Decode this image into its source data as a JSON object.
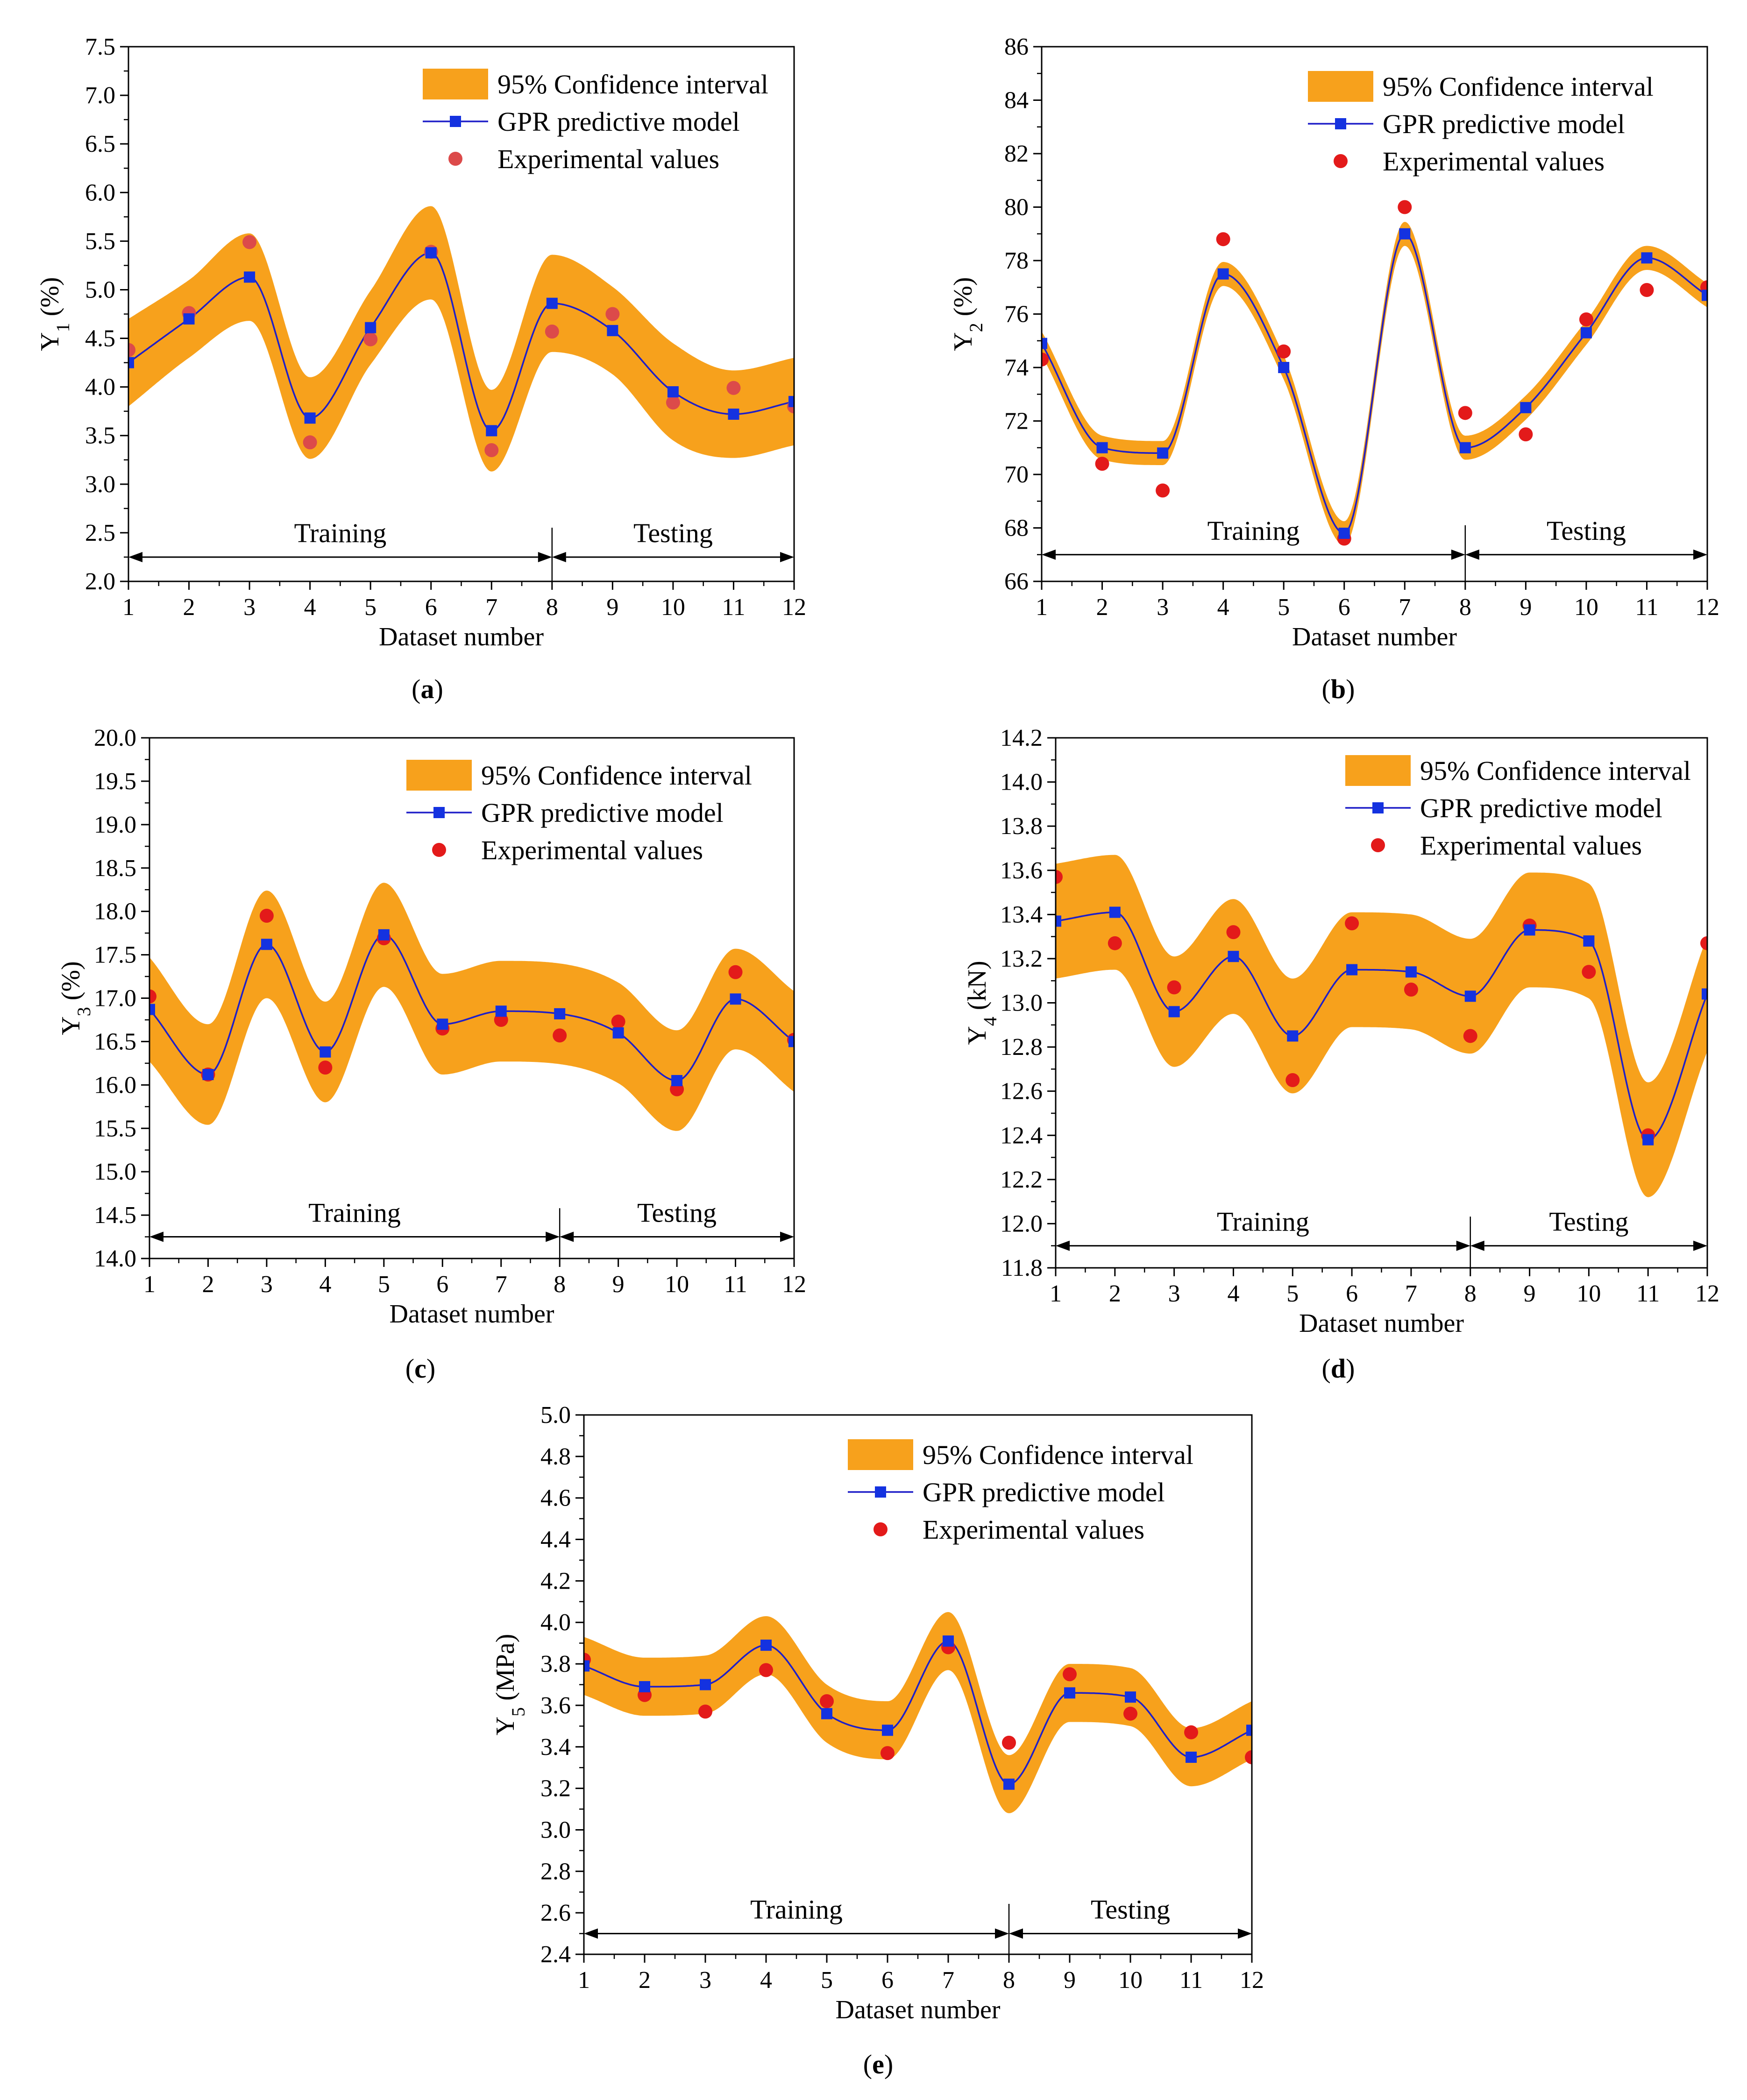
{
  "colors": {
    "band": "#f7a11c",
    "line": "#1f1fc8",
    "marker_square": "#1432e0",
    "marker_circle": "#e31a1a",
    "marker_circle_a": "#dc4a4a",
    "axis": "#000000"
  },
  "chart_data": [
    {
      "id": "a",
      "type": "line",
      "panel_label": "(a)",
      "panel_letter": "a",
      "ylabel": "Y1 (%)",
      "ylabel_main": "Y",
      "ylabel_sub": "1",
      "ylabel_unit": " (%)",
      "xlabel": "Dataset number",
      "xlim": [
        1,
        12
      ],
      "ylim": [
        2.0,
        7.5
      ],
      "ytick_step": 0.5,
      "ytick_decimals": 1,
      "x": [
        1,
        2,
        3,
        4,
        5,
        6,
        7,
        8,
        9,
        10,
        11,
        12
      ],
      "x_tick_labels": [
        "1",
        "2",
        "3",
        "4",
        "5",
        "6",
        "7",
        "8",
        "9",
        "10",
        "11",
        "12"
      ],
      "y_tick_labels": [
        "2.0",
        "2.5",
        "3.0",
        "3.5",
        "4.0",
        "4.5",
        "5.0",
        "5.5",
        "6.0",
        "6.5",
        "7.0",
        "7.5"
      ],
      "series": [
        {
          "name": "GPR predictive model",
          "values": [
            4.25,
            4.7,
            5.13,
            3.68,
            4.61,
            5.38,
            3.55,
            4.86,
            4.58,
            3.95,
            3.72,
            3.85
          ]
        },
        {
          "name": "Experimental values",
          "values": [
            4.38,
            4.76,
            5.49,
            3.43,
            4.49,
            5.39,
            3.35,
            4.57,
            4.75,
            3.84,
            3.99,
            3.8
          ]
        },
        {
          "name": "95% Confidence interval",
          "half_width": [
            0.45,
            0.4,
            0.45,
            0.42,
            0.38,
            0.48,
            0.42,
            0.5,
            0.45,
            0.5,
            0.45,
            0.45
          ]
        }
      ],
      "legend": [
        "95% Confidence interval",
        "GPR predictive model",
        "Experimental values"
      ],
      "split_x": 8,
      "arrow_y": 2.25,
      "region_labels": [
        "Training",
        "Testing"
      ]
    },
    {
      "id": "b",
      "type": "line",
      "panel_label": "(b)",
      "panel_letter": "b",
      "ylabel": "Y2 (%)",
      "ylabel_main": "Y",
      "ylabel_sub": "2",
      "ylabel_unit": " (%)",
      "xlabel": "Dataset number",
      "xlim": [
        1,
        12
      ],
      "ylim": [
        66,
        86
      ],
      "ytick_step": 2,
      "ytick_decimals": 0,
      "x": [
        1,
        2,
        3,
        4,
        5,
        6,
        7,
        8,
        9,
        10,
        11,
        12
      ],
      "x_tick_labels": [
        "1",
        "2",
        "3",
        "4",
        "5",
        "6",
        "7",
        "8",
        "9",
        "10",
        "11",
        "12"
      ],
      "y_tick_labels": [
        "66",
        "68",
        "70",
        "72",
        "74",
        "76",
        "78",
        "80",
        "82",
        "84",
        "86"
      ],
      "series": [
        {
          "name": "GPR predictive model",
          "values": [
            74.9,
            71.0,
            70.8,
            77.5,
            74.0,
            67.8,
            79.0,
            71.0,
            72.5,
            75.3,
            78.1,
            76.7
          ]
        },
        {
          "name": "Experimental values",
          "values": [
            74.3,
            70.4,
            69.4,
            78.8,
            74.6,
            67.6,
            80.0,
            72.3,
            71.5,
            75.8,
            76.9,
            77.0
          ]
        },
        {
          "name": "95% Confidence interval",
          "half_width": [
            0.45,
            0.45,
            0.45,
            0.45,
            0.45,
            0.45,
            0.45,
            0.45,
            0.45,
            0.45,
            0.45,
            0.45
          ]
        }
      ],
      "legend": [
        "95% Confidence interval",
        "GPR predictive model",
        "Experimental values"
      ],
      "split_x": 8,
      "arrow_y": 67.0,
      "region_labels": [
        "Training",
        "Testing"
      ]
    },
    {
      "id": "c",
      "type": "line",
      "panel_label": "(c)",
      "panel_letter": "c",
      "ylabel": "Y3 (%)",
      "ylabel_main": "Y",
      "ylabel_sub": "3",
      "ylabel_unit": " (%)",
      "xlabel": "Dataset number",
      "xlim": [
        1,
        12
      ],
      "ylim": [
        14.0,
        20.0
      ],
      "ytick_step": 0.5,
      "ytick_decimals": 1,
      "x": [
        1,
        2,
        3,
        4,
        5,
        6,
        7,
        8,
        9,
        10,
        11,
        12
      ],
      "x_tick_labels": [
        "1",
        "2",
        "3",
        "4",
        "5",
        "6",
        "7",
        "8",
        "9",
        "10",
        "11",
        "12"
      ],
      "y_tick_labels": [
        "14.0",
        "14.5",
        "15.0",
        "15.5",
        "16.0",
        "16.5",
        "17.0",
        "17.5",
        "18.0",
        "18.5",
        "19.0",
        "19.5",
        "20.0"
      ],
      "series": [
        {
          "name": "GPR predictive model",
          "values": [
            16.87,
            16.12,
            17.62,
            16.38,
            17.73,
            16.7,
            16.85,
            16.82,
            16.6,
            16.05,
            16.99,
            16.5
          ]
        },
        {
          "name": "Experimental values",
          "values": [
            17.02,
            16.12,
            17.95,
            16.2,
            17.69,
            16.65,
            16.75,
            16.57,
            16.73,
            15.95,
            17.3,
            16.52
          ]
        },
        {
          "name": "95% Confidence interval",
          "half_width": [
            0.6,
            0.58,
            0.62,
            0.58,
            0.6,
            0.58,
            0.58,
            0.58,
            0.58,
            0.58,
            0.58,
            0.58
          ]
        }
      ],
      "legend": [
        "95% Confidence interval",
        "GPR predictive model",
        "Experimental values"
      ],
      "split_x": 8,
      "arrow_y": 14.25,
      "region_labels": [
        "Training",
        "Testing"
      ]
    },
    {
      "id": "d",
      "type": "line",
      "panel_label": "(d)",
      "panel_letter": "d",
      "ylabel": "Y4 (kN)",
      "ylabel_main": "Y",
      "ylabel_sub": "4",
      "ylabel_unit": " (kN)",
      "xlabel": "Dataset number",
      "xlim": [
        1,
        12
      ],
      "ylim": [
        11.8,
        14.2
      ],
      "ytick_step": 0.2,
      "ytick_decimals": 1,
      "x": [
        1,
        2,
        3,
        4,
        5,
        6,
        7,
        8,
        9,
        10,
        11,
        12
      ],
      "x_tick_labels": [
        "1",
        "2",
        "3",
        "4",
        "5",
        "6",
        "7",
        "8",
        "9",
        "10",
        "11",
        "12"
      ],
      "y_tick_labels": [
        "11.8",
        "12.0",
        "12.2",
        "12.4",
        "12.6",
        "12.8",
        "13.0",
        "13.2",
        "13.4",
        "13.6",
        "13.8",
        "14.0",
        "14.2"
      ],
      "series": [
        {
          "name": "GPR predictive model",
          "values": [
            13.37,
            13.41,
            12.96,
            13.21,
            12.85,
            13.15,
            13.14,
            13.03,
            13.33,
            13.28,
            12.38,
            13.04
          ]
        },
        {
          "name": "Experimental values",
          "values": [
            13.57,
            13.27,
            13.07,
            13.32,
            12.65,
            13.36,
            13.06,
            12.85,
            13.35,
            13.14,
            12.4,
            13.27
          ]
        },
        {
          "name": "95% Confidence interval",
          "half_width": [
            0.26,
            0.26,
            0.25,
            0.26,
            0.26,
            0.26,
            0.26,
            0.26,
            0.26,
            0.26,
            0.26,
            0.26
          ]
        }
      ],
      "legend": [
        "95% Confidence interval",
        "GPR predictive model",
        "Experimental values"
      ],
      "split_x": 8,
      "arrow_y": 11.9,
      "region_labels": [
        "Training",
        "Testing"
      ]
    },
    {
      "id": "e",
      "type": "line",
      "panel_label": "(e)",
      "panel_letter": "e",
      "ylabel": "Y5 (MPa)",
      "ylabel_main": "Y",
      "ylabel_sub": "5",
      "ylabel_unit": " (MPa)",
      "xlabel": "Dataset number",
      "xlim": [
        1,
        12
      ],
      "ylim": [
        2.4,
        5.0
      ],
      "ytick_step": 0.2,
      "ytick_decimals": 1,
      "x": [
        1,
        2,
        3,
        4,
        5,
        6,
        7,
        8,
        9,
        10,
        11,
        12
      ],
      "x_tick_labels": [
        "1",
        "2",
        "3",
        "4",
        "5",
        "6",
        "7",
        "8",
        "9",
        "10",
        "11",
        "12"
      ],
      "y_tick_labels": [
        "2.4",
        "2.6",
        "2.8",
        "3.0",
        "3.2",
        "3.4",
        "3.6",
        "3.8",
        "4.0",
        "4.2",
        "4.4",
        "4.6",
        "4.8",
        "5.0"
      ],
      "series": [
        {
          "name": "GPR predictive model",
          "values": [
            3.79,
            3.69,
            3.7,
            3.89,
            3.56,
            3.48,
            3.91,
            3.22,
            3.66,
            3.64,
            3.35,
            3.48
          ]
        },
        {
          "name": "Experimental values",
          "values": [
            3.82,
            3.65,
            3.57,
            3.77,
            3.62,
            3.37,
            3.88,
            3.42,
            3.75,
            3.56,
            3.47,
            3.35
          ]
        },
        {
          "name": "95% Confidence interval",
          "half_width": [
            0.14,
            0.14,
            0.14,
            0.14,
            0.14,
            0.14,
            0.14,
            0.14,
            0.14,
            0.14,
            0.14,
            0.14
          ]
        }
      ],
      "legend": [
        "95% Confidence interval",
        "GPR predictive model",
        "Experimental values"
      ],
      "split_x": 8,
      "arrow_y": 2.5,
      "region_labels": [
        "Training",
        "Testing"
      ]
    }
  ]
}
